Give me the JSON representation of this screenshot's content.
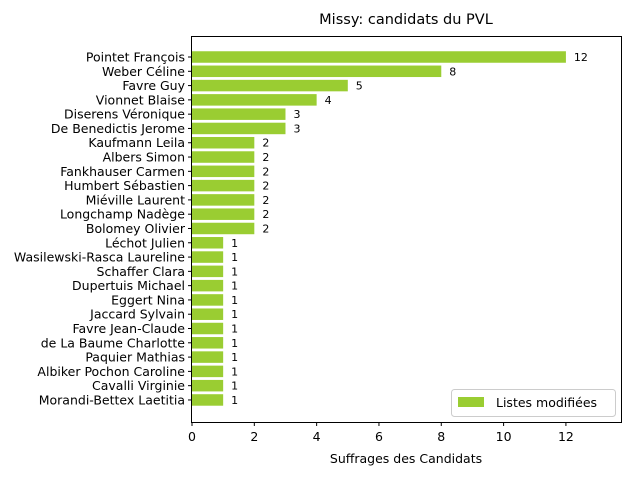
{
  "chart_data": {
    "type": "bar",
    "orientation": "horizontal",
    "title": "Missy: candidats du PVL",
    "xlabel": "Suffrages des Candidats",
    "ylabel": "",
    "xlim": [
      0,
      13.8
    ],
    "xticks": [
      0,
      2,
      4,
      6,
      8,
      10,
      12
    ],
    "grid": false,
    "legend_position": "lower-right",
    "series": [
      {
        "name": "Listes modifiées",
        "color": "#9acd32",
        "categories": [
          "Pointet François",
          "Weber Céline",
          "Favre Guy",
          "Vionnet Blaise",
          "Diserens Véronique",
          "De Benedictis Jerome",
          "Kaufmann Leila",
          "Albers Simon",
          "Fankhauser Carmen",
          "Humbert Sébastien",
          "Miéville Laurent",
          "Longchamp Nadège",
          "Bolomey Olivier",
          "Léchot Julien",
          "Wasilewski-Rasca Laureline",
          "Schaffer Clara",
          "Dupertuis Michael",
          "Eggert Nina",
          "Jaccard Sylvain",
          "Favre Jean-Claude",
          "de La Baume Charlotte",
          "Paquier Mathias",
          "Albiker Pochon Caroline",
          "Cavalli Virginie",
          "Morandi-Bettex Laetitia"
        ],
        "values": [
          12,
          8,
          5,
          4,
          3,
          3,
          2,
          2,
          2,
          2,
          2,
          2,
          2,
          1,
          1,
          1,
          1,
          1,
          1,
          1,
          1,
          1,
          1,
          1,
          1
        ]
      }
    ]
  }
}
